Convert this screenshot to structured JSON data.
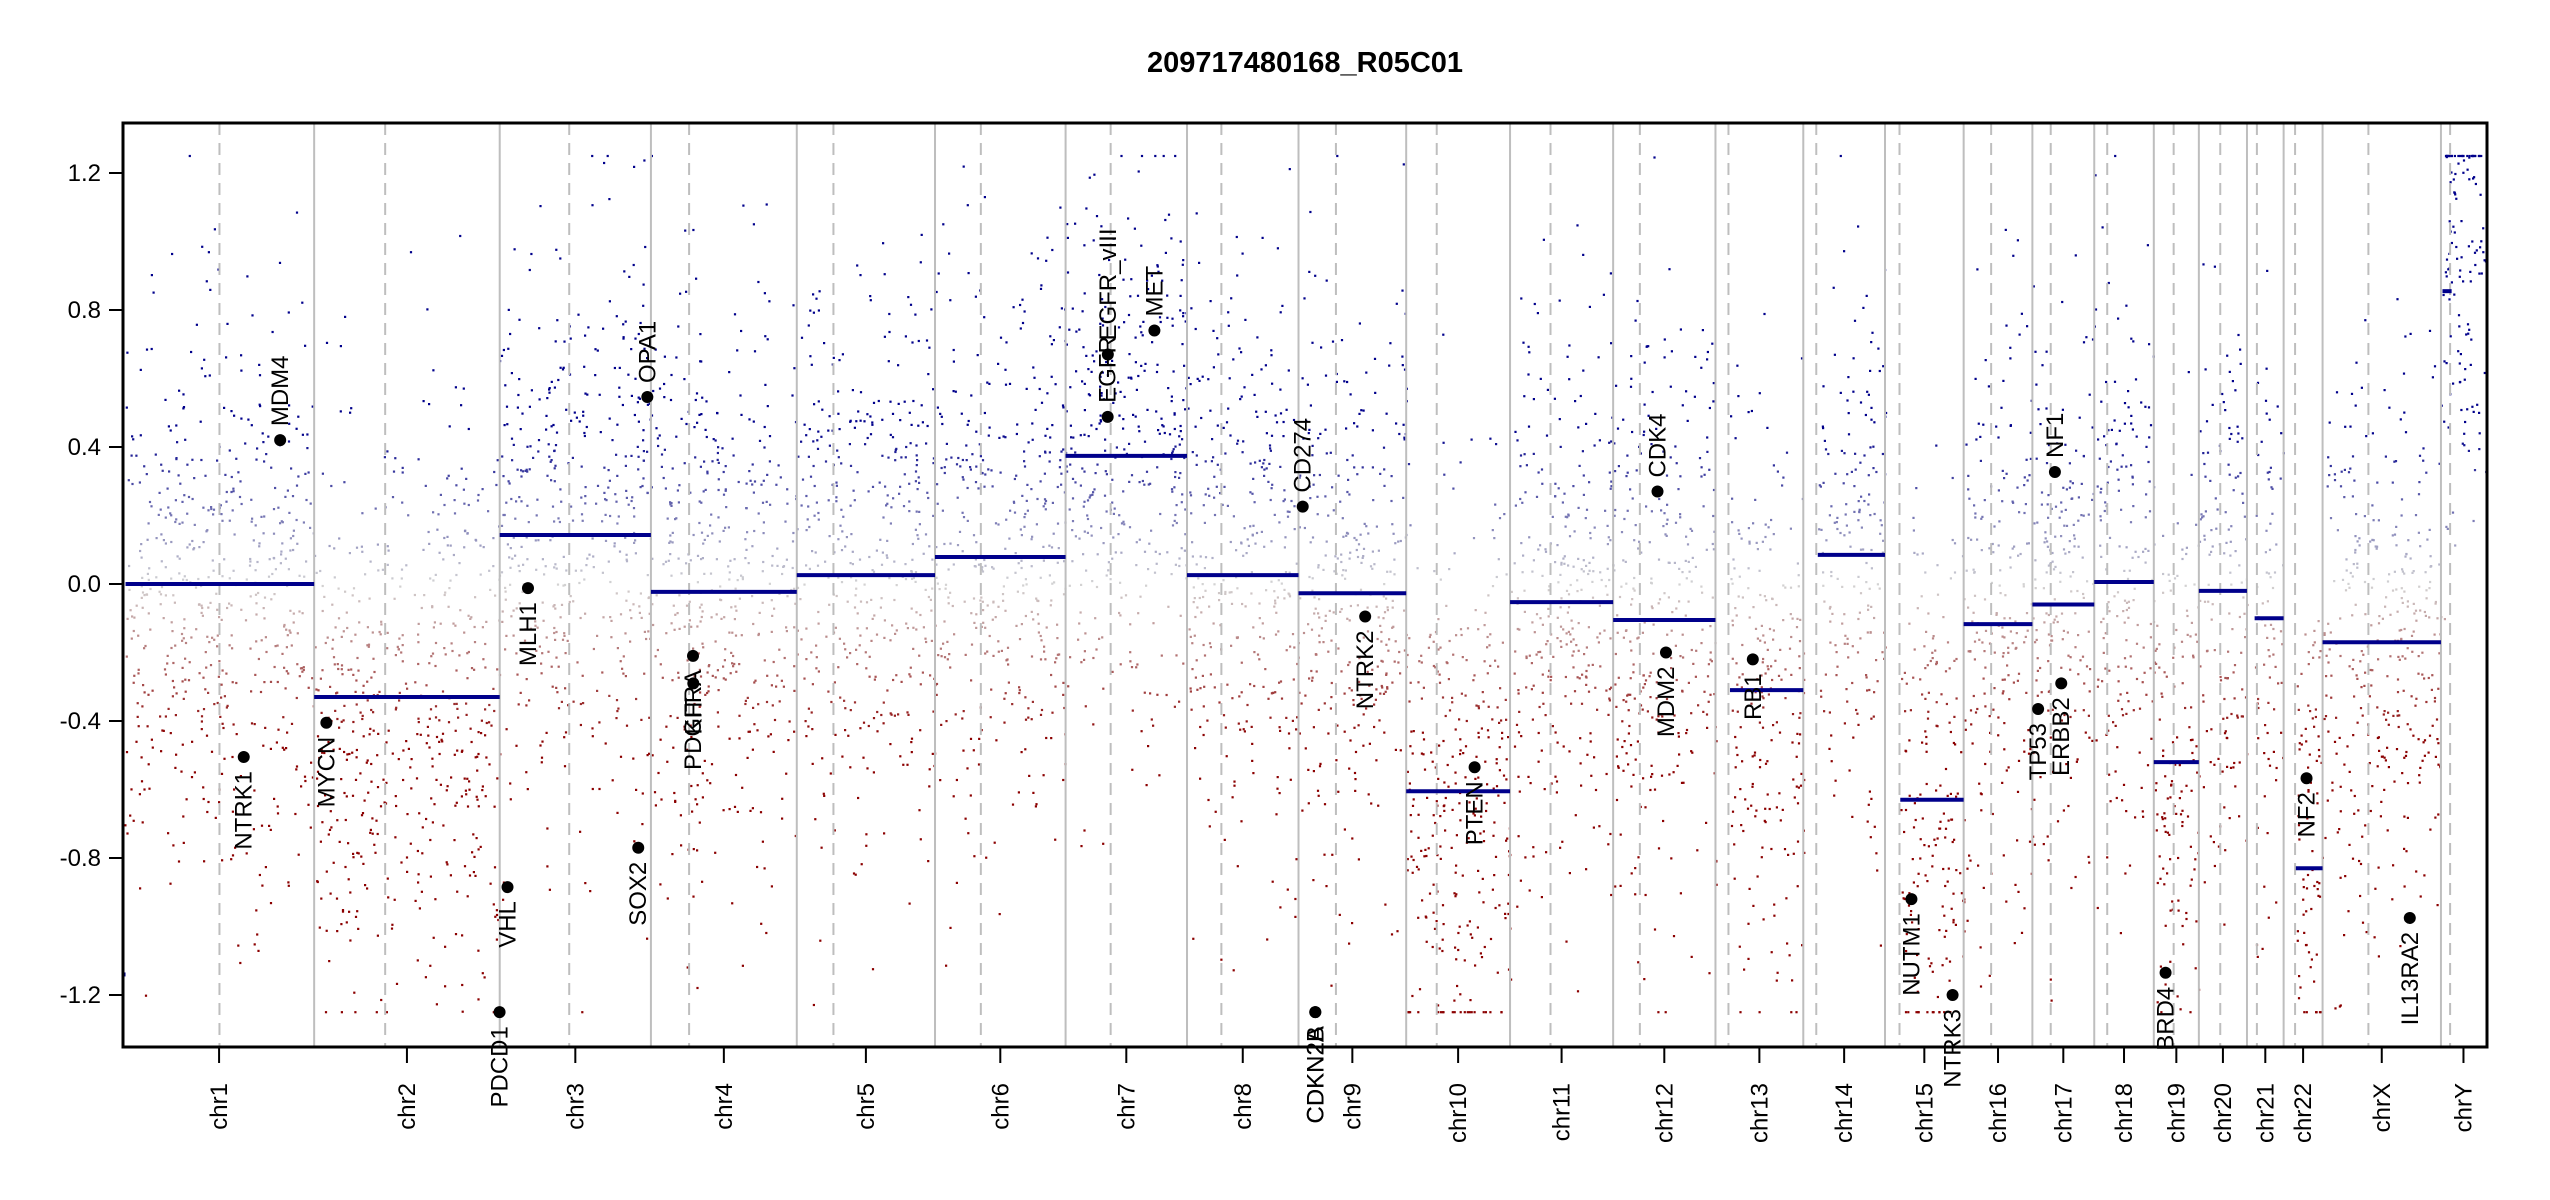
{
  "chart_data": {
    "type": "scatter",
    "title": "209717480168_R05C01",
    "xlabel": "",
    "ylabel": "",
    "ylim": [
      -1.35,
      1.35
    ],
    "clip_range": [
      -1.25,
      1.25
    ],
    "yticks": [
      1.2,
      0.8,
      0.4,
      0.0,
      -0.4,
      -0.8,
      -1.2
    ],
    "ytick_labels": [
      "1.2",
      "0.8",
      "0.4",
      "0.0",
      "-0.4",
      "-0.8",
      "-1.2"
    ],
    "grid": false,
    "legend": "none",
    "colors": {
      "gain": "#00008b",
      "neutral": "#d3d3d3",
      "loss": "#8b0000",
      "segment": "#00008b",
      "gene_point": "#000000",
      "chrom_boundary": "#bebebe",
      "centromere": "#bebebe"
    },
    "chromosomes": [
      {
        "name": "chr1",
        "size_mb": 249,
        "centromere_mb": 125
      },
      {
        "name": "chr2",
        "size_mb": 243,
        "centromere_mb": 93
      },
      {
        "name": "chr3",
        "size_mb": 198,
        "centromere_mb": 91
      },
      {
        "name": "chr4",
        "size_mb": 191,
        "centromere_mb": 50
      },
      {
        "name": "chr5",
        "size_mb": 181,
        "centromere_mb": 48
      },
      {
        "name": "chr6",
        "size_mb": 171,
        "centromere_mb": 60
      },
      {
        "name": "chr7",
        "size_mb": 159,
        "centromere_mb": 59
      },
      {
        "name": "chr8",
        "size_mb": 146,
        "centromere_mb": 45
      },
      {
        "name": "chr9",
        "size_mb": 141,
        "centromere_mb": 49
      },
      {
        "name": "chr10",
        "size_mb": 136,
        "centromere_mb": 40
      },
      {
        "name": "chr11",
        "size_mb": 135,
        "centromere_mb": 53
      },
      {
        "name": "chr12",
        "size_mb": 134,
        "centromere_mb": 35
      },
      {
        "name": "chr13",
        "size_mb": 115,
        "centromere_mb": 17
      },
      {
        "name": "chr14",
        "size_mb": 107,
        "centromere_mb": 17
      },
      {
        "name": "chr15",
        "size_mb": 103,
        "centromere_mb": 19
      },
      {
        "name": "chr16",
        "size_mb": 90,
        "centromere_mb": 36
      },
      {
        "name": "chr17",
        "size_mb": 81,
        "centromere_mb": 24
      },
      {
        "name": "chr18",
        "size_mb": 78,
        "centromere_mb": 17
      },
      {
        "name": "chr19",
        "size_mb": 59,
        "centromere_mb": 26
      },
      {
        "name": "chr20",
        "size_mb": 63,
        "centromere_mb": 28
      },
      {
        "name": "chr21",
        "size_mb": 48,
        "centromere_mb": 13
      },
      {
        "name": "chr22",
        "size_mb": 51,
        "centromere_mb": 15
      },
      {
        "name": "chrX",
        "size_mb": 155,
        "centromere_mb": 60
      },
      {
        "name": "chrY",
        "size_mb": 59,
        "centromere_mb": 12
      }
    ],
    "segments": [
      {
        "chr": "chr1",
        "start_mb": 0,
        "end_mb": 2,
        "value": -1.14
      },
      {
        "chr": "chr1",
        "start_mb": 2,
        "end_mb": 249,
        "value": 0.0
      },
      {
        "chr": "chr2",
        "start_mb": 0,
        "end_mb": 243,
        "value": -0.33
      },
      {
        "chr": "chr3",
        "start_mb": 0,
        "end_mb": 198,
        "value": 0.143
      },
      {
        "chr": "chr4",
        "start_mb": 0,
        "end_mb": 191,
        "value": -0.023
      },
      {
        "chr": "chr5",
        "start_mb": 0,
        "end_mb": 181,
        "value": 0.026
      },
      {
        "chr": "chr6",
        "start_mb": 0,
        "end_mb": 171,
        "value": 0.079
      },
      {
        "chr": "chr7",
        "start_mb": 0,
        "end_mb": 159,
        "value": 0.374
      },
      {
        "chr": "chr8",
        "start_mb": 0,
        "end_mb": 146,
        "value": 0.026
      },
      {
        "chr": "chr9",
        "start_mb": 0,
        "end_mb": 141,
        "value": -0.027
      },
      {
        "chr": "chr10",
        "start_mb": 0,
        "end_mb": 136,
        "value": -0.605
      },
      {
        "chr": "chr11",
        "start_mb": 0,
        "end_mb": 135,
        "value": -0.053
      },
      {
        "chr": "chr12",
        "start_mb": 0,
        "end_mb": 134,
        "value": -0.105
      },
      {
        "chr": "chr13",
        "start_mb": 19,
        "end_mb": 115,
        "value": -0.31
      },
      {
        "chr": "chr14",
        "start_mb": 19,
        "end_mb": 107,
        "value": 0.085
      },
      {
        "chr": "chr15",
        "start_mb": 20,
        "end_mb": 103,
        "value": -0.63
      },
      {
        "chr": "chr16",
        "start_mb": 0,
        "end_mb": 90,
        "value": -0.117
      },
      {
        "chr": "chr17",
        "start_mb": 0,
        "end_mb": 81,
        "value": -0.06
      },
      {
        "chr": "chr18",
        "start_mb": 0,
        "end_mb": 78,
        "value": 0.006
      },
      {
        "chr": "chr19",
        "start_mb": 0,
        "end_mb": 59,
        "value": -0.52
      },
      {
        "chr": "chr20",
        "start_mb": 0,
        "end_mb": 63,
        "value": -0.02
      },
      {
        "chr": "chr21",
        "start_mb": 10,
        "end_mb": 48,
        "value": -0.1
      },
      {
        "chr": "chr22",
        "start_mb": 16,
        "end_mb": 51,
        "value": -0.83
      },
      {
        "chr": "chrX",
        "start_mb": 0,
        "end_mb": 155,
        "value": -0.17
      },
      {
        "chr": "chrY",
        "start_mb": 2,
        "end_mb": 14,
        "value": 0.855
      }
    ],
    "genes": [
      {
        "name": "MDM4",
        "chr": "chr1",
        "pos_mb": 204.5,
        "value": 0.42
      },
      {
        "name": "NTRK1",
        "chr": "chr1",
        "pos_mb": 156.8,
        "value": -0.505
      },
      {
        "name": "MYCN",
        "chr": "chr2",
        "pos_mb": 16.0,
        "value": -0.405
      },
      {
        "name": "PDCD1",
        "chr": "chr2",
        "pos_mb": 242.8,
        "value": -1.25
      },
      {
        "name": "VHL",
        "chr": "chr3",
        "pos_mb": 10.2,
        "value": -0.885
      },
      {
        "name": "MLH1",
        "chr": "chr3",
        "pos_mb": 37.0,
        "value": -0.012
      },
      {
        "name": "SOX2",
        "chr": "chr3",
        "pos_mb": 181.4,
        "value": -0.77
      },
      {
        "name": "OPA1",
        "chr": "chr3",
        "pos_mb": 193.3,
        "value": 0.546
      },
      {
        "name": "PDGFRA",
        "chr": "chr4",
        "pos_mb": 55.1,
        "value": -0.21
      },
      {
        "name": "KIT",
        "chr": "chr4",
        "pos_mb": 55.5,
        "value": -0.29
      },
      {
        "name": "EGFR",
        "chr": "chr7",
        "pos_mb": 55.1,
        "value": 0.488
      },
      {
        "name": "EGFR_vIII",
        "chr": "chr7",
        "pos_mb": 55.3,
        "value": 0.67
      },
      {
        "name": "MET",
        "chr": "chr7",
        "pos_mb": 116.3,
        "value": 0.74
      },
      {
        "name": "CD274",
        "chr": "chr9",
        "pos_mb": 5.5,
        "value": 0.226
      },
      {
        "name": "CDKN2A",
        "chr": "chr9",
        "pos_mb": 21.97,
        "value": -1.25
      },
      {
        "name": "CDKN2B",
        "chr": "chr9",
        "pos_mb": 22.0,
        "value": -1.25
      },
      {
        "name": "NTRK2",
        "chr": "chr9",
        "pos_mb": 87.3,
        "value": -0.095
      },
      {
        "name": "PTEN",
        "chr": "chr10",
        "pos_mb": 89.6,
        "value": -0.535
      },
      {
        "name": "CDK4",
        "chr": "chr12",
        "pos_mb": 58.1,
        "value": 0.27
      },
      {
        "name": "MDM2",
        "chr": "chr12",
        "pos_mb": 69.2,
        "value": -0.2
      },
      {
        "name": "RB1",
        "chr": "chr13",
        "pos_mb": 48.9,
        "value": -0.22
      },
      {
        "name": "NUTM1",
        "chr": "chr15",
        "pos_mb": 34.6,
        "value": -0.92
      },
      {
        "name": "NTRK3",
        "chr": "chr15",
        "pos_mb": 88.5,
        "value": -1.2
      },
      {
        "name": "TP53",
        "chr": "chr17",
        "pos_mb": 7.5,
        "value": -0.365
      },
      {
        "name": "NF1",
        "chr": "chr17",
        "pos_mb": 29.5,
        "value": 0.327
      },
      {
        "name": "ERBB2",
        "chr": "chr17",
        "pos_mb": 37.8,
        "value": -0.29
      },
      {
        "name": "BRD4",
        "chr": "chr19",
        "pos_mb": 15.4,
        "value": -1.135
      },
      {
        "name": "NF2",
        "chr": "chr22",
        "pos_mb": 30.0,
        "value": -0.567
      },
      {
        "name": "IL13RA2",
        "chr": "chrX",
        "pos_mb": 114.2,
        "value": -0.975
      }
    ],
    "probes_note": "background cloud of probe log2-ratio points per chromosome, centred on segment value, coloured blue (gain) through grey to red (loss), clipped at ±1.25"
  }
}
